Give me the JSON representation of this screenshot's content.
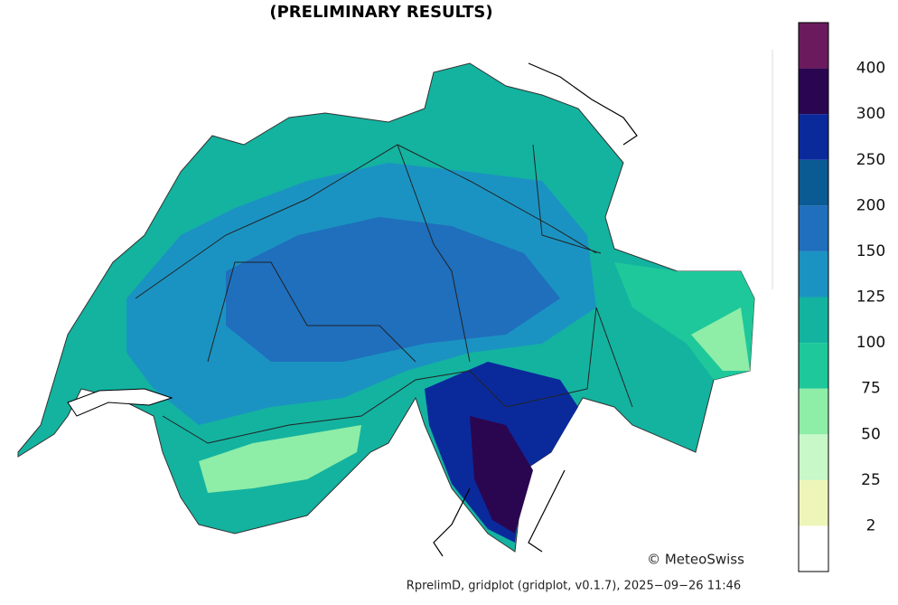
{
  "header": {
    "title": "(PRELIMINARY RESULTS)"
  },
  "colorbar": {
    "levels": [
      2,
      25,
      50,
      75,
      100,
      125,
      150,
      200,
      250,
      300,
      400
    ],
    "colors": [
      "#ffffff",
      "#eef5b8",
      "#c8f7c8",
      "#8eeda7",
      "#1ec89a",
      "#13b3a0",
      "#1b93c2",
      "#1f6fbd",
      "#0a5a93",
      "#0a2a9c",
      "#2a0650",
      "#6b1a5e"
    ]
  },
  "map": {
    "copyright": "© MeteoSwiss"
  },
  "footer": {
    "text": "RprelimD, gridplot (gridplot, v0.1.7), 2025−09−26 11:46"
  }
}
